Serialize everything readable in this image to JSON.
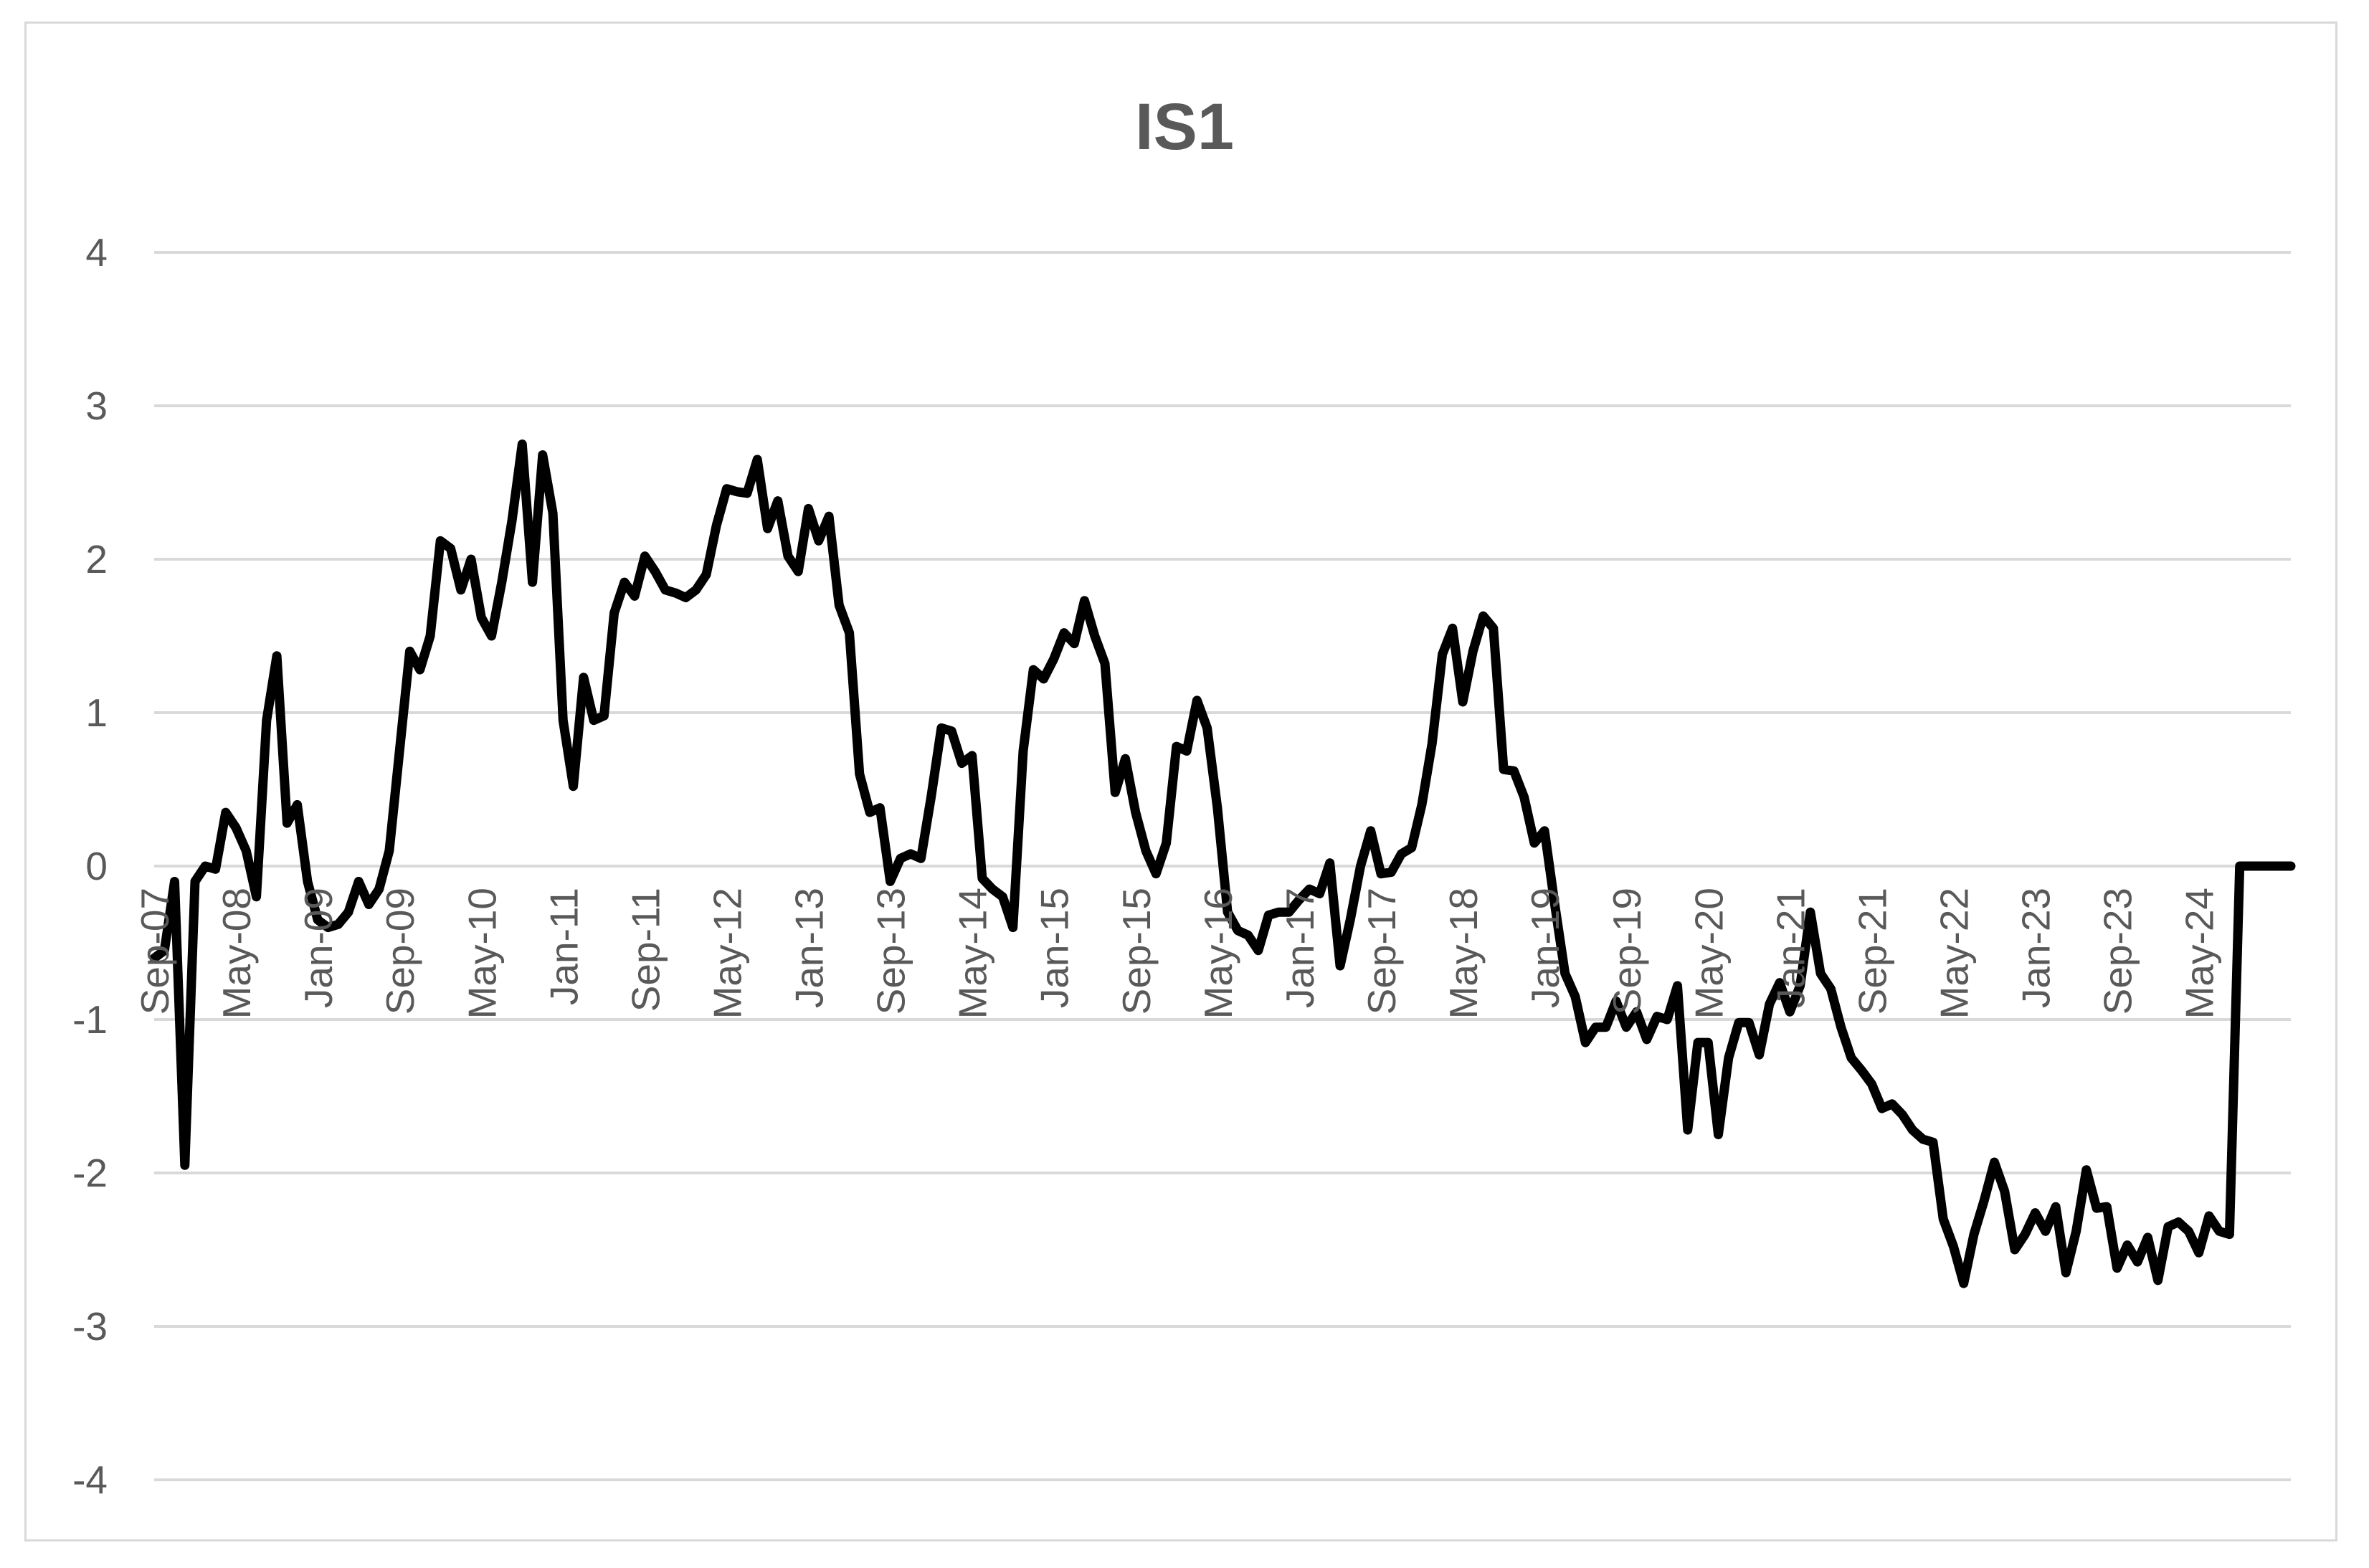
{
  "chart_data": {
    "type": "line",
    "title": "IS1",
    "xlabel": "",
    "ylabel": "",
    "ylim": [
      -4,
      4
    ],
    "yticks": [
      4,
      3,
      2,
      1,
      0,
      -1,
      -2,
      -3,
      -4
    ],
    "xticks": [
      "Sep-07",
      "May-08",
      "Jan-09",
      "Sep-09",
      "May-10",
      "Jan-11",
      "Sep-11",
      "May-12",
      "Jan-13",
      "Sep-13",
      "May-14",
      "Jan-15",
      "Sep-15",
      "May-16",
      "Jan-17",
      "Sep-17",
      "May-18",
      "Jan-19",
      "Sep-19",
      "May-20",
      "Jan-21",
      "Sep-21",
      "May-22",
      "Jan-23",
      "Sep-23",
      "May-24"
    ],
    "x_start": "2007-09",
    "x_end": "2024-12",
    "grid": true,
    "legend": "none",
    "line_color": "#000000",
    "grid_color": "#d9d9d9",
    "series": [
      {
        "values": [
          -0.6,
          -0.55,
          -0.1,
          -1.95,
          -0.1,
          0.0,
          -0.02,
          0.35,
          0.25,
          0.1,
          -0.2,
          0.95,
          1.37,
          0.28,
          0.4,
          -0.1,
          -0.35,
          -0.4,
          -0.38,
          -0.3,
          -0.1,
          -0.25,
          -0.15,
          0.1,
          0.75,
          1.4,
          1.28,
          1.5,
          2.12,
          2.07,
          1.8,
          2.0,
          1.62,
          1.5,
          1.85,
          2.25,
          2.75,
          1.85,
          2.68,
          2.3,
          0.95,
          0.52,
          1.23,
          0.95,
          0.98,
          1.65,
          1.85,
          1.76,
          2.02,
          1.92,
          1.8,
          1.78,
          1.75,
          1.8,
          1.9,
          2.22,
          2.46,
          2.44,
          2.43,
          2.65,
          2.2,
          2.38,
          2.02,
          1.92,
          2.33,
          2.12,
          2.28,
          1.7,
          1.52,
          0.6,
          0.35,
          0.38,
          -0.1,
          0.05,
          0.08,
          0.05,
          0.45,
          0.9,
          0.88,
          0.67,
          0.72,
          -0.08,
          -0.15,
          -0.2,
          -0.4,
          0.75,
          1.28,
          1.22,
          1.35,
          1.52,
          1.45,
          1.73,
          1.5,
          1.32,
          0.48,
          0.7,
          0.35,
          0.1,
          -0.05,
          0.15,
          0.78,
          0.75,
          1.08,
          0.9,
          0.38,
          -0.3,
          -0.42,
          -0.45,
          -0.55,
          -0.32,
          -0.3,
          -0.3,
          -0.22,
          -0.15,
          -0.18,
          0.02,
          -0.65,
          -0.35,
          0.0,
          0.23,
          -0.05,
          -0.04,
          0.08,
          0.12,
          0.4,
          0.8,
          1.38,
          1.55,
          1.07,
          1.4,
          1.63,
          1.55,
          0.63,
          0.62,
          0.45,
          0.15,
          0.23,
          -0.25,
          -0.7,
          -0.85,
          -1.15,
          -1.05,
          -1.05,
          -0.88,
          -1.05,
          -0.95,
          -1.13,
          -0.98,
          -1.0,
          -0.78,
          -1.72,
          -1.15,
          -1.15,
          -1.75,
          -1.25,
          -1.02,
          -1.02,
          -1.23,
          -0.9,
          -0.76,
          -0.95,
          -0.78,
          -0.3,
          -0.7,
          -0.8,
          -1.05,
          -1.25,
          -1.33,
          -1.42,
          -1.58,
          -1.55,
          -1.62,
          -1.72,
          -1.78,
          -1.8,
          -2.3,
          -2.48,
          -2.72,
          -2.4,
          -2.18,
          -1.93,
          -2.12,
          -2.5,
          -2.4,
          -2.26,
          -2.38,
          -2.22,
          -2.65,
          -2.38,
          -1.98,
          -2.23,
          -2.22,
          -2.62,
          -2.47,
          -2.58,
          -2.42,
          -2.7,
          -2.35,
          -2.32,
          -2.38,
          -2.52,
          -2.28,
          -2.38,
          -2.4,
          0.0,
          0.0,
          0.0,
          0.0,
          0.0,
          0.0
        ]
      }
    ]
  }
}
